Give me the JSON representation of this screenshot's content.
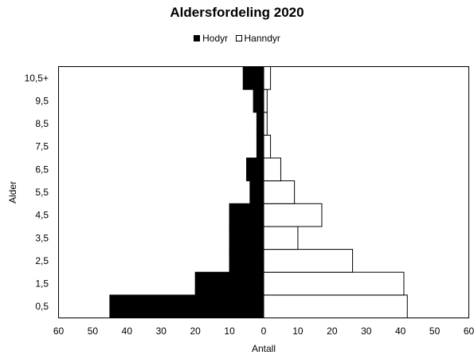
{
  "chart_data": {
    "type": "bar",
    "orientation": "horizontal",
    "title": "Aldersfordeling 2020",
    "xlabel": "Antall",
    "ylabel": "Alder",
    "categories": [
      "0,5",
      "1,5",
      "2,5",
      "3,5",
      "4,5",
      "5,5",
      "6,5",
      "7,5",
      "8,5",
      "9,5",
      "10,5+"
    ],
    "series": [
      {
        "name": "Hodyr",
        "values": [
          45,
          20,
          10,
          10,
          10,
          4,
          5,
          2,
          2,
          3,
          6
        ],
        "direction": "left",
        "color": "#000000"
      },
      {
        "name": "Hanndyr",
        "values": [
          42,
          41,
          26,
          10,
          17,
          9,
          5,
          2,
          1,
          1,
          2
        ],
        "direction": "right",
        "color": "#ffffff"
      }
    ],
    "xlim": [
      -60,
      60
    ],
    "xticks": [
      -60,
      -50,
      -40,
      -30,
      -20,
      -10,
      0,
      10,
      20,
      30,
      40,
      50,
      60
    ],
    "xtick_labels": [
      "60",
      "50",
      "40",
      "30",
      "20",
      "10",
      "0",
      "10",
      "20",
      "30",
      "40",
      "50",
      "60"
    ],
    "grid": false,
    "legend_position": "top"
  }
}
